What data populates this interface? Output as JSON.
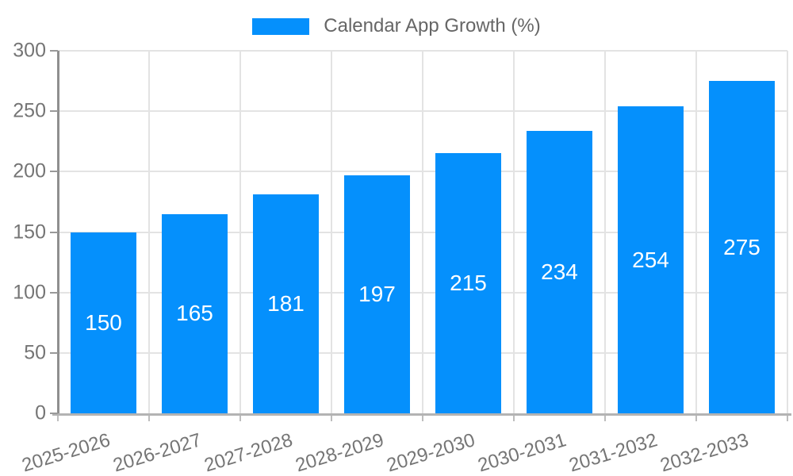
{
  "legend": {
    "label": "Calendar App Growth (%)"
  },
  "chart_data": {
    "type": "bar",
    "title": "Calendar App Growth (%)",
    "categories": [
      "2025-2026",
      "2026-2027",
      "2027-2028",
      "2028-2029",
      "2029-2030",
      "2030-2031",
      "2031-2032",
      "2032-2033"
    ],
    "values": [
      150,
      165,
      181,
      197,
      215,
      234,
      254,
      275
    ],
    "xlabel": "",
    "ylabel": "",
    "ylim": [
      0,
      300
    ],
    "yticks": [
      0,
      50,
      100,
      150,
      200,
      250,
      300
    ],
    "grid": "horizontal and vertical category gridlines",
    "legend_position": "top-center",
    "value_labels": "white, centered inside bars"
  },
  "colors": {
    "bar": "#0590fc",
    "grid": "#e3e3e3",
    "axis_y": "#8f8f8f",
    "axis_x": "#b3b3b3",
    "y_tick_mark": "#999999",
    "x_tick_mark": "#bdbdbd",
    "tick_text": "#757575",
    "legend_text": "#666666",
    "value_text": "#ffffff",
    "background": "#ffffff"
  }
}
